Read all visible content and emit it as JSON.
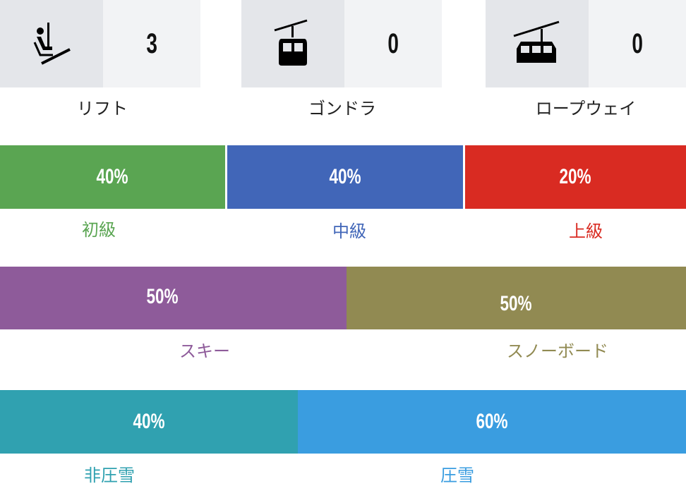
{
  "lifts": [
    {
      "icon": "chairlift-icon",
      "count": "3",
      "label": "リフト"
    },
    {
      "icon": "gondola-icon",
      "count": "0",
      "label": "ゴンドラ"
    },
    {
      "icon": "ropeway-icon",
      "count": "0",
      "label": "ロープウェイ"
    }
  ],
  "difficulty": [
    {
      "percent": "40%",
      "label": "初級",
      "color": "#5aa552"
    },
    {
      "percent": "40%",
      "label": "中級",
      "color": "#4166b8"
    },
    {
      "percent": "20%",
      "label": "上級",
      "color": "#d92b22"
    }
  ],
  "style": [
    {
      "percent": "50%",
      "label": "スキー",
      "color": "#8e5b9a"
    },
    {
      "percent": "50%",
      "label": "スノーボード",
      "color": "#918a52"
    }
  ],
  "grooming": [
    {
      "percent": "40%",
      "label": "非圧雪",
      "color": "#30a1b0"
    },
    {
      "percent": "60%",
      "label": "圧雪",
      "color": "#3a9de0"
    }
  ]
}
